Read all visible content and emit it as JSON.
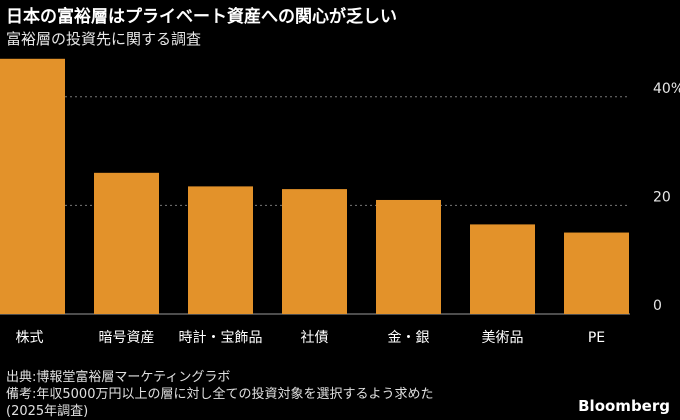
{
  "title": "日本の富裕層はプライベート資産への関心が乏しい",
  "subtitle": "富裕層の投資先に関する調査",
  "chart_data": {
    "type": "bar",
    "title": "日本の富裕層はプライベート資産への関心が乏しい",
    "subtitle": "富裕層の投資先に関する調査",
    "categories": [
      "株式",
      "暗号資産",
      "時計・宝飾品",
      "社債",
      "金・銀",
      "美術品",
      "PE"
    ],
    "values": [
      47,
      26,
      23.5,
      23,
      21,
      16.5,
      15
    ],
    "yticks": [
      "0",
      "20",
      "40%"
    ],
    "ytick_values": [
      0,
      20,
      40
    ],
    "ylim": [
      0,
      50
    ],
    "grid": true,
    "bar_color": "#e3922a"
  },
  "footer": {
    "source": "出典:博報堂富裕層マーケティングラボ",
    "note1": "備考:年収5000万円以上の層に対し全ての投資対象を選択するよう求めた",
    "note2": "(2025年調査)"
  },
  "brand": "Bloomberg"
}
